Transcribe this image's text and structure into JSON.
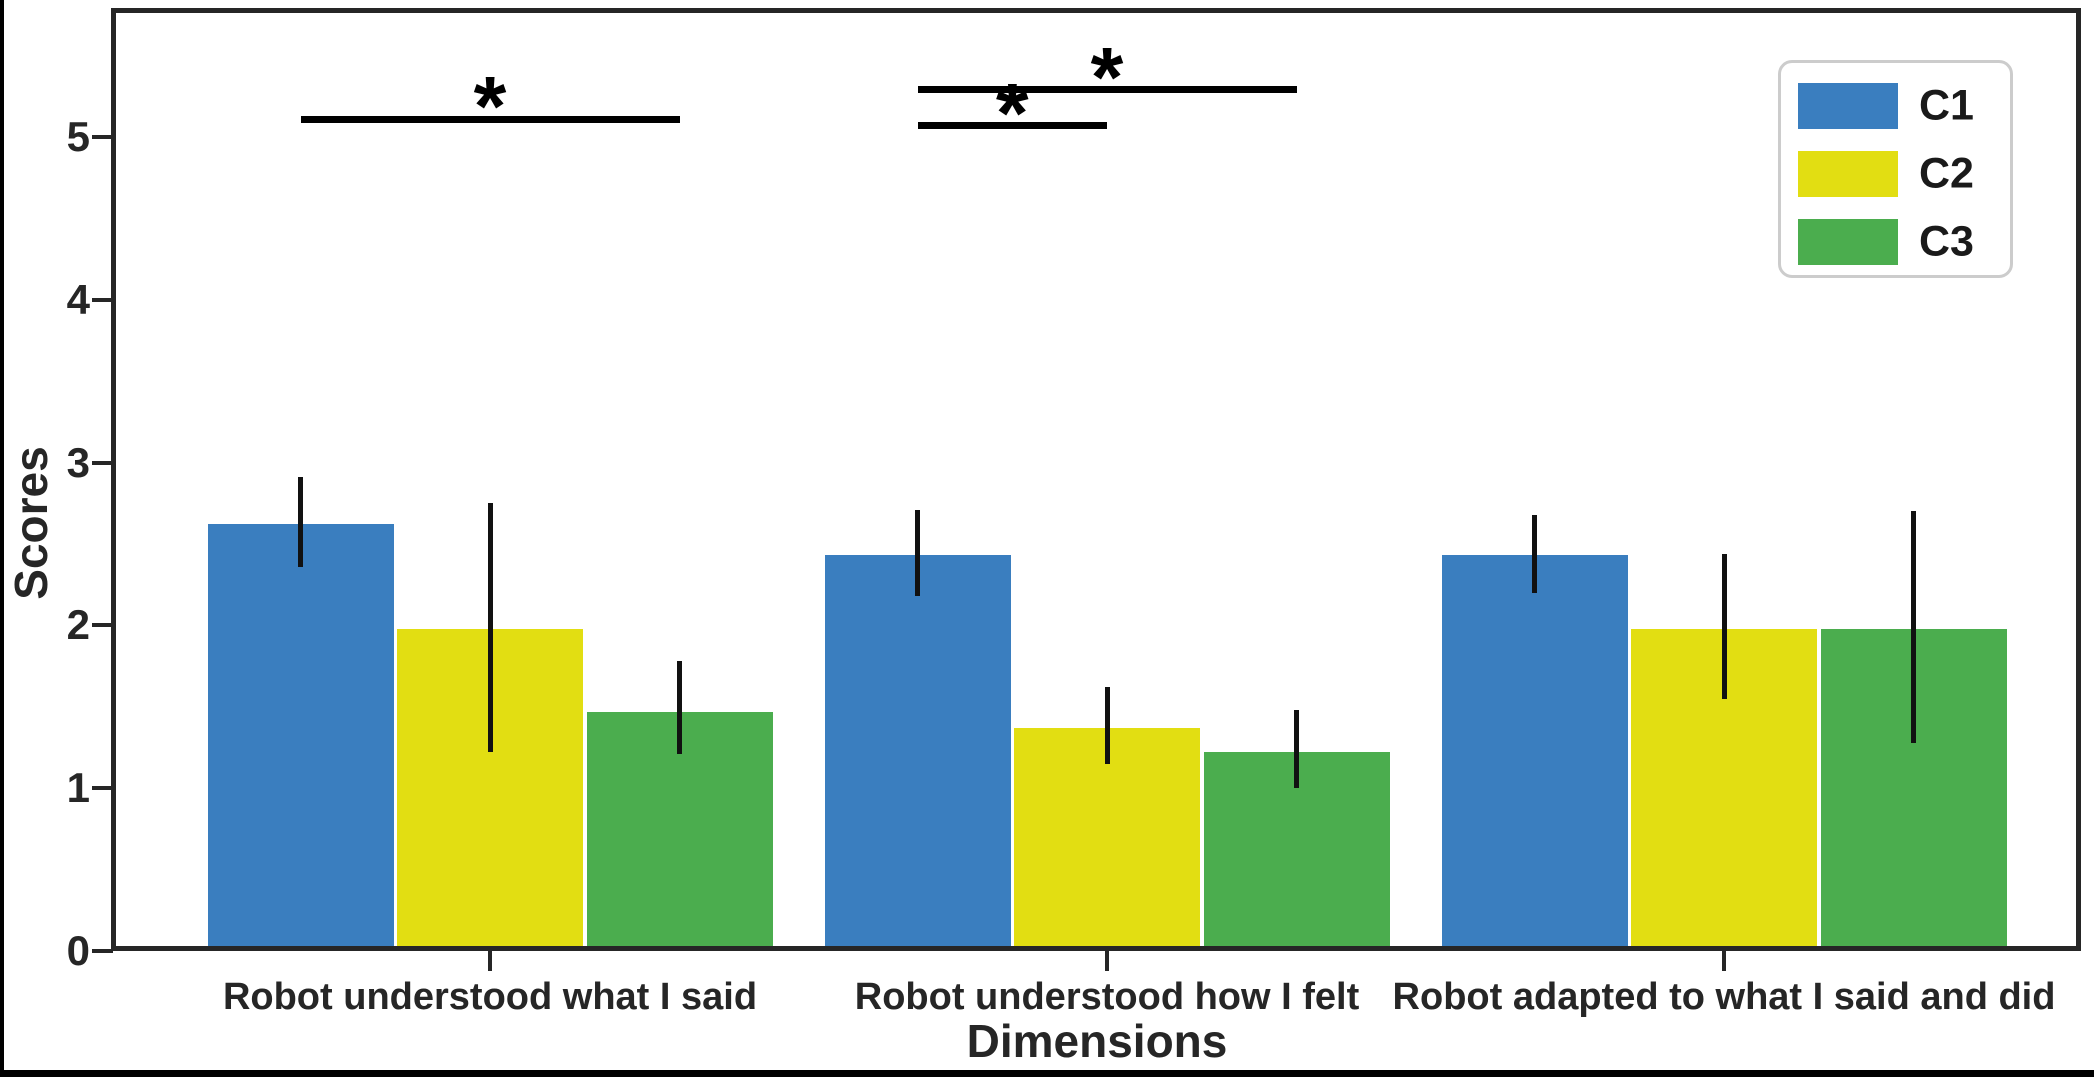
{
  "figure": {
    "background": "#ffffff",
    "axis_color": "#262626",
    "frame_color": "#000000"
  },
  "chart_data": {
    "type": "bar",
    "title": "",
    "xlabel": "Dimensions",
    "ylabel": "Scores",
    "ylim": [
      0,
      5.8
    ],
    "yticks": [
      0,
      1,
      2,
      3,
      4,
      5
    ],
    "grid": false,
    "legend_position": "upper right",
    "error_bars": true,
    "categories": [
      "Robot understood what I said",
      "Robot understood how I felt",
      "Robot adapted to what I said and did"
    ],
    "series": [
      {
        "name": "C1",
        "color": "#3a7ebf",
        "values": [
          2.62,
          2.43,
          2.43
        ],
        "error_low": [
          2.36,
          2.18,
          2.2
        ],
        "error_high": [
          2.91,
          2.71,
          2.68
        ]
      },
      {
        "name": "C2",
        "color": "#e2de12",
        "values": [
          1.98,
          1.37,
          1.98
        ],
        "error_low": [
          1.22,
          1.15,
          1.55
        ],
        "error_high": [
          2.75,
          1.62,
          2.44
        ]
      },
      {
        "name": "C3",
        "color": "#4bad4e",
        "values": [
          1.47,
          1.22,
          1.98
        ],
        "error_low": [
          1.21,
          1.0,
          1.28
        ],
        "error_high": [
          1.78,
          1.48,
          2.7
        ]
      }
    ],
    "annotations": [
      {
        "label": "*",
        "group": 0,
        "from_series": 0,
        "to_series": 2,
        "y": 5.11
      },
      {
        "label": "*",
        "group": 1,
        "from_series": 0,
        "to_series": 2,
        "y": 5.29
      },
      {
        "label": "*",
        "group": 1,
        "from_series": 0,
        "to_series": 1,
        "y": 5.07
      }
    ]
  }
}
